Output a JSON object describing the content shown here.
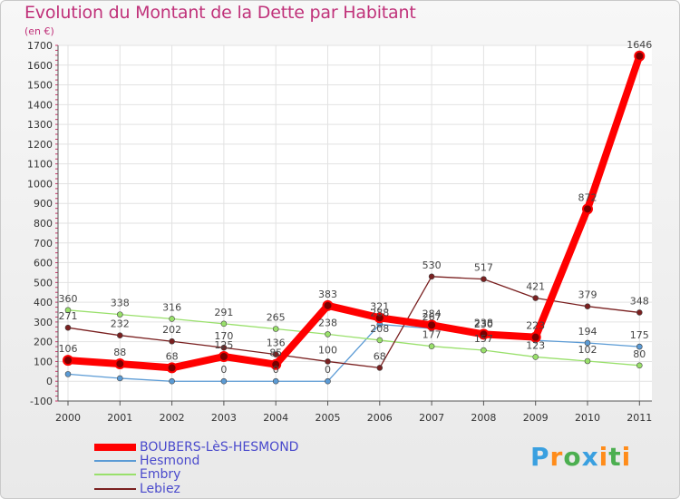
{
  "title": "Evolution du Montant de la Dette par Habitant",
  "subtitle": "(en €)",
  "chart_data": {
    "type": "line",
    "x": [
      "2000",
      "2001",
      "2002",
      "2003",
      "2004",
      "2005",
      "2006",
      "2007",
      "2008",
      "2009",
      "2010",
      "2011"
    ],
    "ylim": [
      -100,
      1700
    ],
    "yticks": [
      -100,
      0,
      100,
      200,
      300,
      400,
      500,
      600,
      700,
      800,
      900,
      1000,
      1100,
      1200,
      1300,
      1400,
      1500,
      1600,
      1700
    ],
    "grid": true,
    "legend_position": "bottom-left",
    "series": [
      {
        "name": "BOUBERS-LèS-HESMOND",
        "color": "#ff0000",
        "values": [
          106,
          88,
          68,
          125,
          85,
          383,
          321,
          284,
          238,
          223,
          872,
          1646
        ],
        "labels": [
          "106",
          "88",
          "68",
          "125",
          "85",
          "383",
          "321",
          "284",
          "238",
          "223",
          "872",
          "1646"
        ]
      },
      {
        "name": "Hesmond",
        "color": "#5b9bd5",
        "values": [
          36,
          15,
          0,
          0,
          0,
          0,
          288,
          267,
          230,
          207,
          194,
          175
        ],
        "labels": [
          "",
          "",
          "",
          "0",
          "0",
          "0",
          "288",
          "267",
          "230",
          "",
          "194",
          "175"
        ]
      },
      {
        "name": "Embry",
        "color": "#99e06b",
        "values": [
          360,
          338,
          316,
          291,
          265,
          238,
          208,
          177,
          157,
          123,
          102,
          80
        ],
        "labels": [
          "360",
          "338",
          "316",
          "291",
          "265",
          "238",
          "208",
          "177",
          "157",
          "123",
          "102",
          "80"
        ]
      },
      {
        "name": "Lebiez",
        "color": "#7a2020",
        "values": [
          271,
          232,
          202,
          170,
          136,
          100,
          68,
          530,
          517,
          421,
          379,
          348
        ],
        "labels": [
          "271",
          "232",
          "202",
          "170",
          "136",
          "100",
          "68",
          "530",
          "517",
          "421",
          "379",
          "348"
        ]
      }
    ]
  },
  "logo": {
    "letters": [
      "P",
      "r",
      "o",
      "x",
      "i",
      "t",
      "i"
    ],
    "colors": [
      "#3aa0e0",
      "#ff8c1a",
      "#4caf50",
      "#3aa0e0",
      "#ff8c1a",
      "#4caf50",
      "#ff8c1a"
    ]
  }
}
